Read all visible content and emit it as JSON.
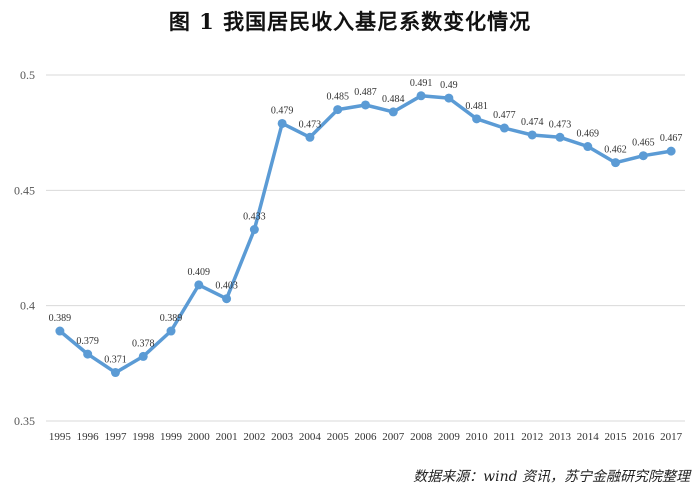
{
  "title": "图 1  我国居民收入基尼系数变化情况",
  "source": "数据来源：wind 资讯，苏宁金融研究院整理",
  "chart_data": {
    "type": "line",
    "title": "图 1  我国居民收入基尼系数变化情况",
    "xlabel": "",
    "ylabel": "",
    "x": [
      "1995",
      "1996",
      "1997",
      "1998",
      "1999",
      "2000",
      "2001",
      "2002",
      "2003",
      "2004",
      "2005",
      "2006",
      "2007",
      "2008",
      "2009",
      "2010",
      "2011",
      "2012",
      "2013",
      "2014",
      "2015",
      "2016",
      "2017"
    ],
    "series": [
      {
        "values": [
          0.389,
          0.379,
          0.371,
          0.378,
          0.389,
          0.409,
          0.403,
          0.433,
          0.479,
          0.473,
          0.485,
          0.487,
          0.484,
          0.491,
          0.49,
          0.481,
          0.477,
          0.474,
          0.473,
          0.469,
          0.462,
          0.465,
          0.467
        ]
      }
    ],
    "data_labels": [
      "0.389",
      "0.379",
      "0.371",
      "0.378",
      "0.389",
      "0.409",
      "0.403",
      "0.433",
      "0.479",
      "0.473",
      "0.485",
      "0.487",
      "0.484",
      "0.491",
      "0.49",
      "0.481",
      "0.477",
      "0.474",
      "0.473",
      "0.469",
      "0.462",
      "0.465",
      "0.467"
    ],
    "yticks": [
      "0.35",
      "0.4",
      "0.45",
      "0.5"
    ],
    "ylim": [
      0.35,
      0.5
    ],
    "grid": true,
    "color": "#5b9bd5"
  }
}
